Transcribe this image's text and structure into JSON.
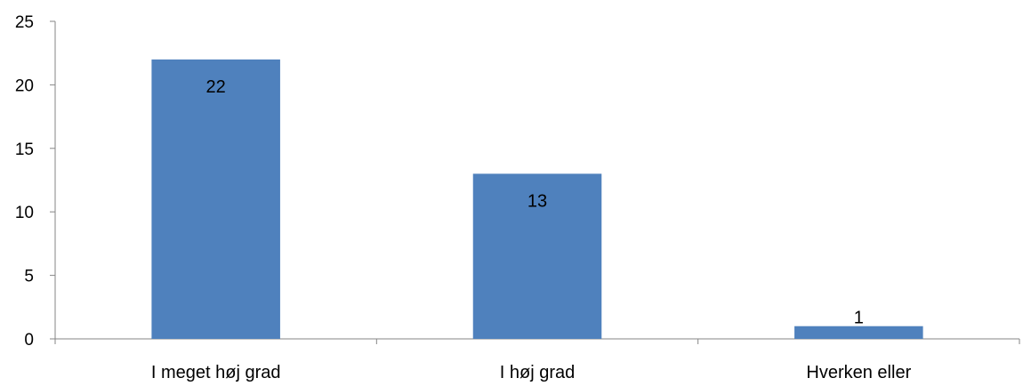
{
  "chart_data": {
    "type": "bar",
    "categories": [
      "I meget høj grad",
      "I høj grad",
      "Hverken eller"
    ],
    "values": [
      22,
      13,
      1
    ],
    "data_labels": [
      "22",
      "13",
      "1"
    ],
    "y_ticks": [
      "0",
      "5",
      "10",
      "15",
      "20",
      "25"
    ],
    "ylim": [
      0,
      25
    ],
    "grid": false,
    "legend": "none",
    "bar_color": "#4F81BD",
    "axis_color": "#868686"
  }
}
